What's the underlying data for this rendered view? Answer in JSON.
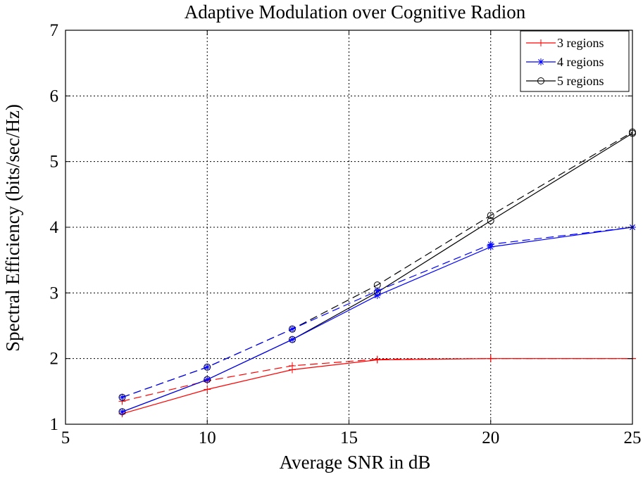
{
  "chart_data": {
    "type": "line",
    "title": "Adaptive Modulation over Cognitive Radion",
    "xlabel": "Average SNR in dB",
    "ylabel": "Spectral Efficiency (bits/sec/Hz)",
    "xlim": [
      5,
      25
    ],
    "ylim": [
      1,
      7
    ],
    "xticks": [
      5,
      10,
      15,
      20,
      25
    ],
    "yticks": [
      1,
      2,
      3,
      4,
      5,
      6,
      7
    ],
    "grid": true,
    "legend_position": "top-right",
    "x": [
      7,
      10,
      13,
      16,
      20,
      25
    ],
    "series": [
      {
        "name": "3 regions",
        "legend": true,
        "color": "#ff0000",
        "dash": "solid",
        "marker": "plus",
        "values": [
          1.16,
          1.53,
          1.83,
          1.98,
          2.0,
          2.0
        ]
      },
      {
        "name": "3 regions (dashed)",
        "legend": false,
        "color": "#ff0000",
        "dash": "dashed",
        "marker": "plus",
        "values": [
          1.35,
          1.66,
          1.89,
          1.99,
          2.0,
          2.0
        ]
      },
      {
        "name": "4 regions",
        "legend": true,
        "color": "#0000ff",
        "dash": "solid",
        "marker": "star",
        "values": [
          1.19,
          1.68,
          2.29,
          2.96,
          3.7,
          4.0
        ]
      },
      {
        "name": "4 regions (dashed)",
        "legend": false,
        "color": "#0000ff",
        "dash": "dashed",
        "marker": "star",
        "values": [
          1.41,
          1.87,
          2.45,
          3.03,
          3.74,
          4.0
        ]
      },
      {
        "name": "5 regions",
        "legend": true,
        "color": "#000000",
        "dash": "solid",
        "marker": "circle",
        "values": [
          1.19,
          1.68,
          2.29,
          3.01,
          4.1,
          5.43
        ]
      },
      {
        "name": "5 regions (dashed)",
        "legend": false,
        "color": "#000000",
        "dash": "dashed",
        "marker": "circle",
        "values": [
          1.41,
          1.87,
          2.45,
          3.12,
          4.18,
          5.45
        ]
      }
    ]
  }
}
